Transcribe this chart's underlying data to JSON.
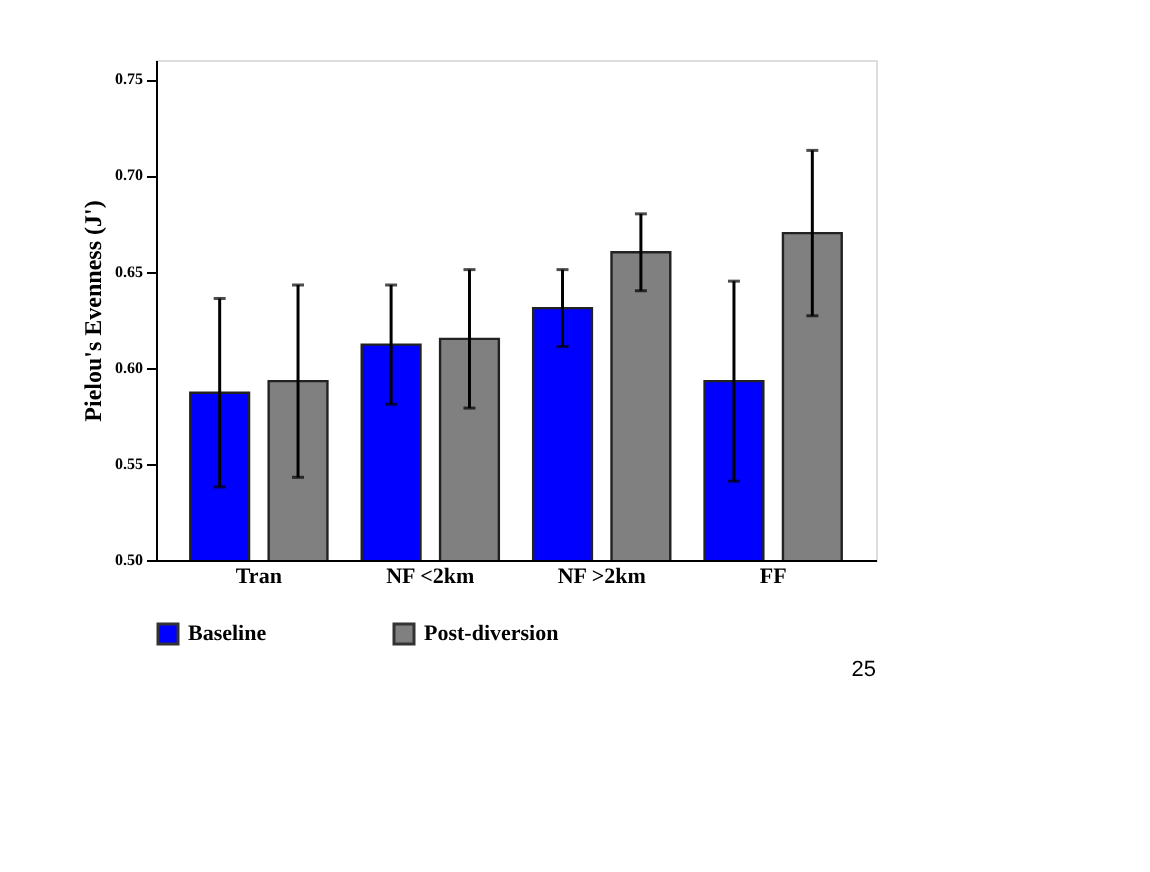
{
  "chart_data": {
    "type": "bar",
    "ylabel": "Pielou's Evenness (J')",
    "categories": [
      "Tran",
      "NF <2km",
      "NF >2km",
      "FF"
    ],
    "series": [
      {
        "name": "Baseline",
        "color": "#0000ff",
        "values": [
          0.587,
          0.612,
          0.631,
          0.593
        ],
        "errors": [
          0.049,
          0.031,
          0.02,
          0.052
        ]
      },
      {
        "name": "Post-diversion",
        "color": "#808080",
        "values": [
          0.593,
          0.615,
          0.66,
          0.67
        ],
        "errors": [
          0.05,
          0.036,
          0.02,
          0.043
        ]
      }
    ],
    "ylim": [
      0.5,
      0.76
    ],
    "yticks": [
      {
        "value": 0.5,
        "label": "0.50"
      },
      {
        "value": 0.55,
        "label": "0.55"
      },
      {
        "value": 0.6,
        "label": "0.60"
      },
      {
        "value": 0.65,
        "label": "0.65"
      },
      {
        "value": 0.7,
        "label": "0.70"
      },
      {
        "value": 0.75,
        "label": "0.75"
      }
    ],
    "legend": "bottom",
    "grid": false,
    "annotations": [
      "25"
    ]
  }
}
